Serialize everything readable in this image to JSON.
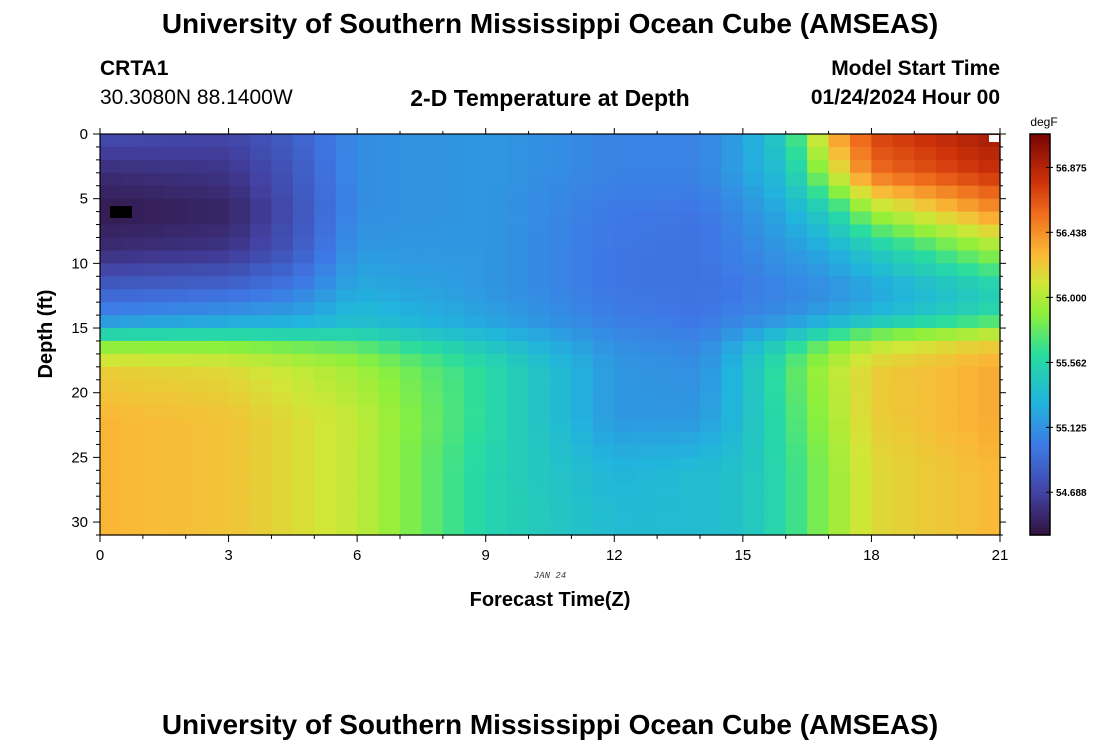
{
  "header": {
    "title_top": "University of Southern Mississippi Ocean Cube (AMSEAS)",
    "title_bottom": "University of Southern Mississippi Ocean Cube (AMSEAS)",
    "station": "CRTA1",
    "coords": "30.3080N  88.1400W",
    "chart_title": "2-D Temperature at Depth",
    "model_start_label": "Model Start Time",
    "model_start_value": "01/24/2024 Hour 00"
  },
  "chart_data": {
    "type": "heatmap",
    "title": "2-D Temperature at Depth",
    "xlabel": "Forecast Time(Z)",
    "ylabel": "Depth (ft)",
    "date_label": "JAN 24",
    "colorbar_unit": "degF",
    "x_range": [
      0,
      21
    ],
    "y_range": [
      0,
      31
    ],
    "x_ticks": [
      0,
      3,
      6,
      9,
      12,
      15,
      18,
      21
    ],
    "x_tick_labels": [
      "0",
      "3",
      "6",
      "9",
      "12",
      "15",
      "18",
      "21"
    ],
    "y_ticks": [
      0,
      5,
      10,
      15,
      20,
      25,
      30
    ],
    "y_tick_labels": [
      "0",
      "5",
      "10",
      "15",
      "20",
      "25",
      "30"
    ],
    "colorbar_range": [
      54.4,
      57.1
    ],
    "colorbar_ticks": [
      54.688,
      55.125,
      55.562,
      56.0,
      56.438,
      56.875
    ],
    "colorbar_tick_labels": [
      "54.688",
      "55.125",
      "55.562",
      "56.000",
      "56.438",
      "56.875"
    ],
    "grid_x_count": 42,
    "grid_y_count": 31,
    "field_anchors_time_hours": [
      0,
      3,
      4.5,
      6,
      9,
      12,
      14,
      15,
      16,
      17,
      18,
      21
    ],
    "field_anchors_depth_ft": [
      0,
      3,
      6,
      9,
      12,
      14,
      15,
      16,
      18,
      22,
      26,
      31
    ],
    "temperature_degF_by_depth": [
      [
        54.75,
        54.7,
        54.85,
        55.1,
        55.15,
        55.05,
        55.05,
        55.2,
        55.5,
        56.3,
        56.7,
        56.95
      ],
      [
        54.55,
        54.6,
        54.8,
        55.1,
        55.15,
        55.05,
        55.05,
        55.2,
        55.4,
        56.0,
        56.55,
        56.8
      ],
      [
        54.45,
        54.5,
        54.75,
        55.1,
        55.15,
        55.0,
        54.98,
        55.1,
        55.25,
        55.5,
        55.95,
        56.45
      ],
      [
        54.55,
        54.6,
        54.8,
        55.15,
        55.15,
        54.98,
        54.96,
        55.05,
        55.15,
        55.25,
        55.45,
        55.95
      ],
      [
        54.85,
        54.9,
        55.0,
        55.25,
        55.15,
        54.98,
        54.96,
        55.0,
        55.05,
        55.1,
        55.2,
        55.5
      ],
      [
        55.05,
        55.15,
        55.2,
        55.35,
        55.2,
        55.02,
        54.98,
        55.05,
        55.1,
        55.2,
        55.3,
        55.6
      ],
      [
        55.3,
        55.35,
        55.35,
        55.4,
        55.25,
        55.05,
        55.0,
        55.12,
        55.25,
        55.4,
        55.6,
        55.9
      ],
      [
        55.8,
        55.8,
        55.75,
        55.7,
        55.4,
        55.1,
        55.05,
        55.25,
        55.5,
        55.8,
        56.0,
        56.2
      ],
      [
        56.2,
        56.15,
        56.05,
        55.95,
        55.6,
        55.15,
        55.1,
        55.35,
        55.7,
        56.0,
        56.2,
        56.35
      ],
      [
        56.3,
        56.25,
        56.15,
        56.05,
        55.6,
        55.15,
        55.15,
        55.35,
        55.65,
        55.95,
        56.2,
        56.35
      ],
      [
        56.3,
        56.25,
        56.15,
        56.05,
        55.55,
        55.3,
        55.35,
        55.4,
        55.6,
        55.9,
        56.15,
        56.3
      ],
      [
        56.3,
        56.25,
        56.15,
        56.05,
        55.55,
        55.35,
        55.35,
        55.4,
        55.6,
        55.9,
        56.15,
        56.3
      ]
    ]
  }
}
